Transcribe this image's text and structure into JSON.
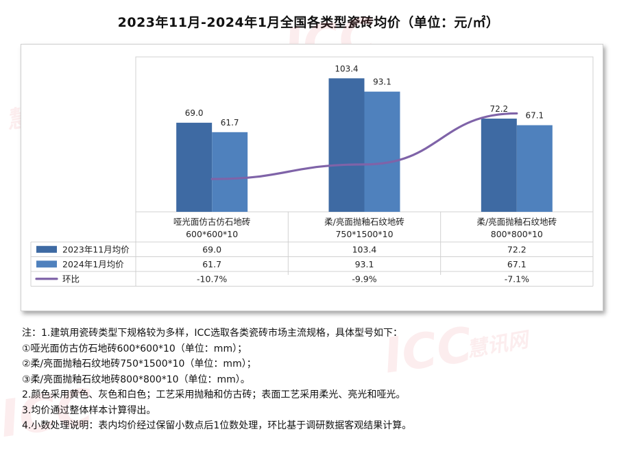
{
  "title": "2023年11月-2024年1月全国各类型瓷砖均价（单位：元/㎡）",
  "watermarks": [
    "ICC",
    "慧讯网",
    "ICC",
    "慧讯网",
    "ICC"
  ],
  "chart_data": {
    "type": "bar",
    "categories": [
      [
        "哑光面仿古仿石地砖",
        "600*600*10"
      ],
      [
        "柔/亮面抛釉石纹地砖",
        "750*1500*10"
      ],
      [
        "柔/亮面抛釉石纹地砖",
        "800*800*10"
      ]
    ],
    "series": [
      {
        "name": "2023年11月均价",
        "type": "bar",
        "values": [
          69.0,
          103.4,
          72.2
        ],
        "labels": [
          "69.0",
          "103.4",
          "72.2"
        ],
        "color": "#3e6aa3"
      },
      {
        "name": "2024年1月均价",
        "type": "bar",
        "values": [
          61.7,
          93.1,
          67.1
        ],
        "labels": [
          "61.7",
          "93.1",
          "67.1"
        ],
        "color": "#4f81bd"
      },
      {
        "name": "环比",
        "type": "line",
        "values": [
          -10.7,
          -9.9,
          -7.1
        ],
        "labels": [
          "-10.7%",
          "-9.9%",
          "-7.1%"
        ],
        "color": "#8064a2"
      }
    ],
    "ylim": [
      0,
      120
    ],
    "grid": false,
    "legend": "data-table"
  }
}
